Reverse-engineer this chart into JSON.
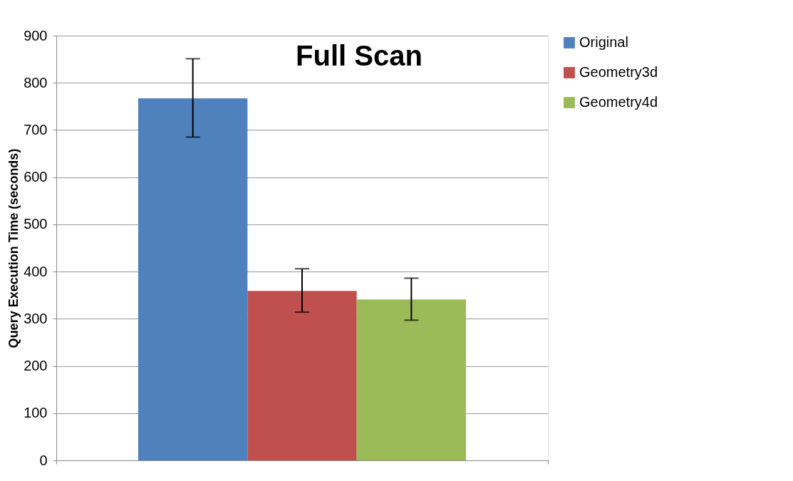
{
  "chart_data": {
    "type": "bar",
    "title": "Full Scan",
    "ylabel": "Query Execution Time (seconds)",
    "categories": [
      null
    ],
    "series": [
      {
        "name": "Original",
        "color": "#4f81bd",
        "values": [
          767
        ],
        "errors": [
          [
            685,
            851
          ]
        ]
      },
      {
        "name": "Geometry3d",
        "color": "#c0504d",
        "values": [
          359
        ],
        "errors": [
          [
            314,
            406
          ]
        ]
      },
      {
        "name": "Geometry4d",
        "color": "#9bbb59",
        "values": [
          341
        ],
        "errors": [
          [
            297,
            386
          ]
        ]
      }
    ],
    "ylim": [
      0,
      900
    ],
    "yticks": [
      0,
      100,
      200,
      300,
      400,
      500,
      600,
      700,
      800,
      900
    ],
    "grid": "y",
    "legend": "right"
  }
}
